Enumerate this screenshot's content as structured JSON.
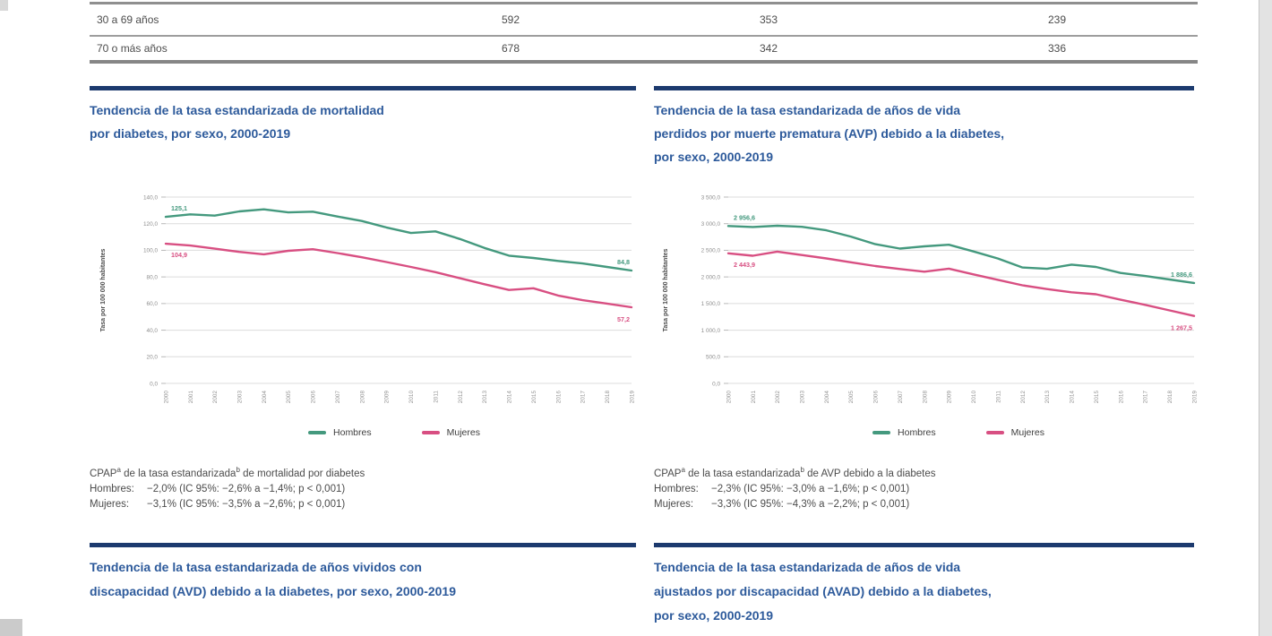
{
  "colors": {
    "navy_bar": "#1c3a6e",
    "title_blue": "#2d5a9b",
    "hombres_green": "#44997e",
    "mujeres_pink": "#d84f82"
  },
  "table": {
    "rows": [
      {
        "label": "30 a 69 años",
        "values": [
          "592",
          "353",
          "239"
        ]
      },
      {
        "label": "70 o más años",
        "values": [
          "678",
          "342",
          "336"
        ]
      }
    ]
  },
  "panels": [
    {
      "title_lines": [
        "Tendencia de la tasa estandarizada de mortalidad",
        "por diabetes, por sexo, 2000-2019"
      ]
    },
    {
      "title_lines": [
        "Tendencia de la tasa estandarizada de años de vida",
        "perdidos por muerte prematura (AVP) debido a la diabetes,",
        "por sexo, 2000-2019"
      ]
    },
    {
      "title_lines": [
        "Tendencia de la tasa estandarizada de años vividos con",
        "discapacidad (AVD) debido a la diabetes, por sexo, 2000-2019"
      ]
    },
    {
      "title_lines": [
        "Tendencia de la tasa estandarizada de años de vida",
        "ajustados por discapacidad (AVAD) debido a la diabetes,",
        "por sexo, 2000-2019"
      ]
    }
  ],
  "cpap": [
    {
      "t1": "CPAP",
      "s1": "a",
      "t2": " de la tasa estandarizada",
      "s2": "b",
      "t3": " de mortalidad por diabetes",
      "rows": [
        {
          "label": "Hombres:",
          "value": "−2,0% (IC 95%: −2,6% a −1,4%; p < 0,001)"
        },
        {
          "label": "Mujeres:",
          "value": "−3,1% (IC 95%: −3,5% a −2,6%; p < 0,001)"
        }
      ]
    },
    {
      "t1": "CPAP",
      "s1": "a",
      "t2": " de la tasa estandarizada",
      "s2": "b",
      "t3": " de AVP debido a la diabetes",
      "rows": [
        {
          "label": "Hombres:",
          "value": "−2,3% (IC 95%: −3,0% a −1,6%; p < 0,001)"
        },
        {
          "label": "Mujeres:",
          "value": "−3,3% (IC 95%: −4,3% a −2,2%; p < 0,001)"
        }
      ]
    }
  ],
  "chart_data": [
    {
      "type": "line",
      "title": "Tendencia de la tasa estandarizada de mortalidad por diabetes, por sexo, 2000-2019",
      "ylabel": "Tasa por 100 000 habitantes",
      "xlabel": "",
      "grid": true,
      "legend_position": "bottom",
      "ylim": [
        0,
        140
      ],
      "x": [
        "2000",
        "2001",
        "2002",
        "2003",
        "2004",
        "2005",
        "2006",
        "2007",
        "2008",
        "2009",
        "2010",
        "2011",
        "2012",
        "2013",
        "2014",
        "2015",
        "2016",
        "2017",
        "2018",
        "2019"
      ],
      "yticks": [
        {
          "value": 140,
          "label": "140,0"
        },
        {
          "value": 120,
          "label": "120,0"
        },
        {
          "value": 100,
          "label": "100,0"
        },
        {
          "value": 80,
          "label": "80,0"
        },
        {
          "value": 60,
          "label": "60,0"
        },
        {
          "value": 40,
          "label": "40,0"
        },
        {
          "value": 20,
          "label": "20,0"
        },
        {
          "value": 0,
          "label": "0,0"
        }
      ],
      "series": [
        {
          "name": "Hombres",
          "color": "#44997e",
          "values": [
            125.1,
            127.0,
            126.1,
            129.2,
            130.8,
            128.5,
            129.0,
            125.4,
            122.0,
            117.2,
            113.0,
            114.2,
            108.5,
            101.8,
            96.0,
            94.2,
            92.0,
            90.1,
            87.5,
            84.8
          ],
          "start_label": "125,1",
          "start_side": "above",
          "end_label": "84,8",
          "end_side": "above"
        },
        {
          "name": "Mujeres",
          "color": "#d84f82",
          "values": [
            104.9,
            103.6,
            101.2,
            98.8,
            97.0,
            99.6,
            100.8,
            97.9,
            94.8,
            91.2,
            87.5,
            83.6,
            79.0,
            74.5,
            70.2,
            71.5,
            66.0,
            62.5,
            60.0,
            57.2
          ],
          "start_label": "104,9",
          "start_side": "below",
          "end_label": "57,2",
          "end_side": "below"
        }
      ]
    },
    {
      "type": "line",
      "title": "Tendencia de la tasa estandarizada de años de vida perdidos por muerte prematura (AVP) debido a la diabetes, por sexo, 2000-2019",
      "ylabel": "Tasa por 100 000 habitantes",
      "xlabel": "",
      "grid": true,
      "legend_position": "bottom",
      "ylim": [
        0,
        3500
      ],
      "x": [
        "2000",
        "2001",
        "2002",
        "2003",
        "2004",
        "2005",
        "2006",
        "2007",
        "2008",
        "2009",
        "2010",
        "2011",
        "2012",
        "2013",
        "2014",
        "2015",
        "2016",
        "2017",
        "2018",
        "2019"
      ],
      "yticks": [
        {
          "value": 3500,
          "label": "3 500,0"
        },
        {
          "value": 3000,
          "label": "3 000,0"
        },
        {
          "value": 2500,
          "label": "2 500,0"
        },
        {
          "value": 2000,
          "label": "2 000,0"
        },
        {
          "value": 1500,
          "label": "1 500,0"
        },
        {
          "value": 1000,
          "label": "1 000,0"
        },
        {
          "value": 500,
          "label": "500,0"
        },
        {
          "value": 0,
          "label": "0,0"
        }
      ],
      "series": [
        {
          "name": "Hombres",
          "color": "#44997e",
          "values": [
            2956.6,
            2938.0,
            2962.0,
            2941.0,
            2875.0,
            2758.0,
            2615.0,
            2532.0,
            2575.0,
            2604.0,
            2478.0,
            2345.0,
            2178.0,
            2152.0,
            2232.0,
            2188.0,
            2075.0,
            2018.0,
            1952.0,
            1886.6
          ],
          "start_label": "2 956,6",
          "start_side": "above",
          "end_label": "1 886,6",
          "end_side": "above"
        },
        {
          "name": "Mujeres",
          "color": "#d84f82",
          "values": [
            2443.9,
            2398.0,
            2475.0,
            2412.0,
            2348.0,
            2275.0,
            2205.0,
            2148.0,
            2098.0,
            2155.0,
            2048.0,
            1945.0,
            1842.0,
            1772.0,
            1712.0,
            1675.0,
            1572.0,
            1475.0,
            1372.0,
            1267.5
          ],
          "start_label": "2 443,9",
          "start_side": "below",
          "end_label": "1 267,5",
          "end_side": "below"
        }
      ]
    }
  ]
}
